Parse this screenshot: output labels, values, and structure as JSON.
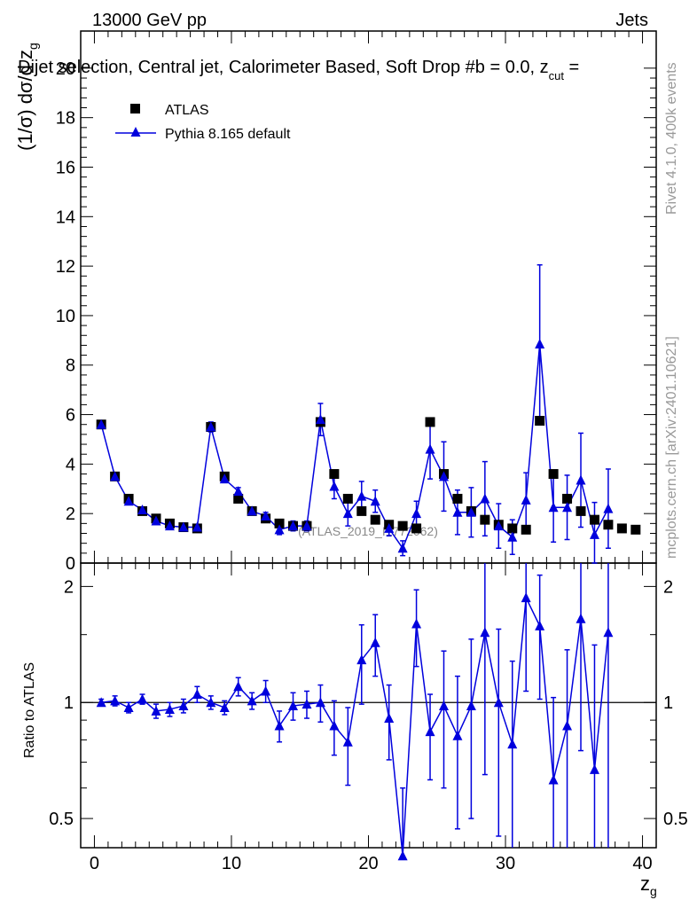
{
  "header": {
    "energy_label": "13000 GeV pp",
    "category_label": "Jets",
    "plot_title": "Dijet selection, Central jet, Calorimeter Based, Soft Drop #b = 0.0, z",
    "plot_title_sub": "cut",
    "plot_title_tail": " = "
  },
  "side_labels": {
    "rivet": "Rivet 4.1.0,  400k events",
    "mcplots": "mcplots.cern.ch [arXiv:2401.10621]"
  },
  "watermark": "(ATLAS_2019_I1772062)",
  "legend": {
    "data_label": "ATLAS",
    "mc_label": "Pythia 8.165 default"
  },
  "colors": {
    "data": "#000000",
    "mc": "#0000dd",
    "axis": "#000000"
  },
  "chart_data": [
    {
      "type": "scatter",
      "panel": "main",
      "ylabel_main": "(1/σ) dσ/d z",
      "ylabel_sub": "g",
      "xlim": [
        -1,
        41
      ],
      "ylim": [
        0,
        21.5
      ],
      "yticks": [
        0,
        2,
        4,
        6,
        8,
        10,
        12,
        14,
        16,
        18,
        20
      ],
      "ytick_labels": [
        "0",
        "2",
        "4",
        "6",
        "8",
        "10",
        "12",
        "14",
        "16",
        "18",
        "20"
      ],
      "x": [
        0.5,
        1.5,
        2.5,
        3.5,
        4.5,
        5.5,
        6.5,
        7.5,
        8.5,
        9.5,
        10.5,
        11.5,
        12.5,
        13.5,
        14.5,
        15.5,
        16.5,
        17.5,
        18.5,
        19.5,
        20.5,
        21.5,
        22.5,
        23.5,
        24.5,
        25.5,
        26.5,
        27.5,
        28.5,
        29.5,
        30.5,
        31.5,
        32.5,
        33.5,
        34.5,
        35.5,
        36.5,
        37.5,
        38.5,
        39.5
      ],
      "series": [
        {
          "name": "ATLAS",
          "marker": "square",
          "values": [
            5.6,
            3.5,
            2.6,
            2.1,
            1.8,
            1.6,
            1.45,
            1.4,
            5.5,
            3.5,
            2.6,
            2.1,
            1.8,
            1.6,
            1.5,
            1.5,
            5.7,
            3.6,
            2.6,
            2.1,
            1.75,
            1.55,
            1.5,
            1.4,
            5.7,
            3.6,
            2.6,
            2.1,
            1.75,
            1.55,
            1.4,
            1.35,
            5.75,
            3.6,
            2.6,
            2.1,
            1.75,
            1.55,
            1.4,
            1.35
          ]
        },
        {
          "name": "Pythia 8.165 default",
          "marker": "triangle",
          "values": [
            5.6,
            3.5,
            2.5,
            2.15,
            1.7,
            1.5,
            1.45,
            1.45,
            5.5,
            3.4,
            2.9,
            2.1,
            1.9,
            1.35,
            1.5,
            1.5,
            5.8,
            3.1,
            2.0,
            2.7,
            2.5,
            1.4,
            0.6,
            2.0,
            4.6,
            3.5,
            2.05,
            2.05,
            2.6,
            1.5,
            1.05,
            2.55,
            8.85,
            2.25,
            2.25,
            3.35,
            1.15,
            2.2
          ],
          "errors": [
            0.08,
            0.1,
            0.1,
            0.1,
            0.1,
            0.1,
            0.1,
            0.1,
            0.2,
            0.15,
            0.15,
            0.1,
            0.15,
            0.2,
            0.2,
            0.2,
            0.65,
            0.5,
            0.5,
            0.6,
            0.45,
            0.3,
            0.3,
            0.5,
            1.2,
            1.4,
            0.9,
            1.0,
            1.5,
            0.9,
            0.7,
            1.1,
            3.2,
            1.4,
            1.3,
            1.9,
            1.3,
            1.6
          ]
        }
      ]
    },
    {
      "type": "scatter",
      "panel": "ratio",
      "ylabel": "Ratio to ATLAS",
      "xlabel_main": "z",
      "xlabel_sub": "g",
      "scale": "log",
      "ylim": [
        0.42,
        2.3
      ],
      "yticks": [
        0.5,
        1,
        2
      ],
      "ytick_labels": [
        "0.5",
        "1",
        "2"
      ],
      "xticks": [
        0,
        10,
        20,
        30,
        40
      ],
      "xtick_labels": [
        "0",
        "10",
        "20",
        "30",
        "40"
      ],
      "reference_line": 1,
      "series": [
        {
          "name": "Pythia 8.165 default",
          "values": [
            1.0,
            1.01,
            0.97,
            1.02,
            0.95,
            0.96,
            0.98,
            1.05,
            1.0,
            0.97,
            1.1,
            1.01,
            1.07,
            0.87,
            0.98,
            0.99,
            1.0,
            0.87,
            0.79,
            1.29,
            1.43,
            0.91,
            0.4,
            1.6,
            0.84,
            0.98,
            0.82,
            0.98,
            1.52,
            1.0,
            0.78,
            1.87,
            1.58,
            0.63,
            0.87,
            1.65,
            0.67,
            1.52
          ],
          "errors": [
            0.02,
            0.03,
            0.03,
            0.03,
            0.04,
            0.04,
            0.04,
            0.05,
            0.04,
            0.04,
            0.06,
            0.05,
            0.07,
            0.08,
            0.08,
            0.08,
            0.11,
            0.14,
            0.18,
            0.3,
            0.26,
            0.2,
            0.2,
            0.36,
            0.21,
            0.38,
            0.35,
            0.48,
            0.87,
            0.55,
            0.5,
            0.8,
            0.56,
            0.4,
            0.5,
            0.9,
            0.74,
            1.1
          ]
        }
      ]
    }
  ]
}
